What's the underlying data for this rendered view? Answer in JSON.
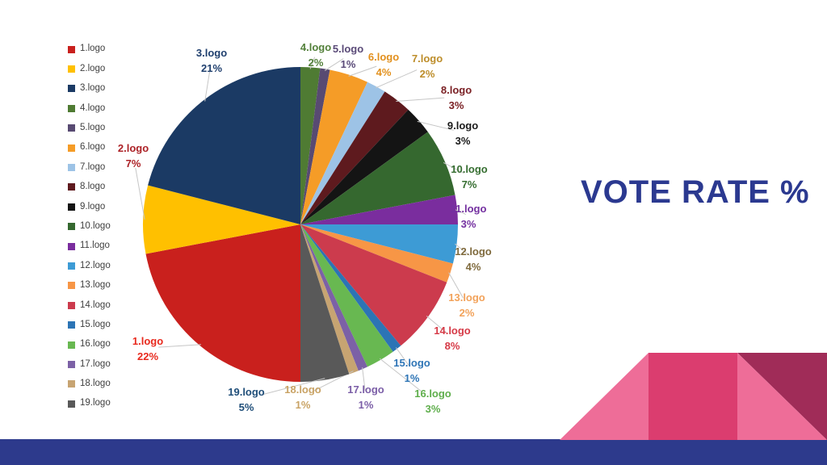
{
  "title": {
    "text": "VOTE RATE %",
    "color": "#2B3990"
  },
  "chart_data": {
    "type": "pie",
    "title": "VOTE RATE %",
    "unit": "percent",
    "start_angle_deg": 180,
    "direction": "clockwise",
    "legend_position": "left",
    "total": 100,
    "label_format": "{name} {value}%",
    "series": [
      {
        "label": "1.logo",
        "value": 22,
        "color": "#C9201D",
        "label_color": "#E8291D"
      },
      {
        "label": "2.logo",
        "value": 7,
        "color": "#FFC000",
        "label_color": "#AC2227"
      },
      {
        "label": "3.logo",
        "value": 21,
        "color": "#1B3A64",
        "label_color": "#1F3F6E"
      },
      {
        "label": "4.logo",
        "value": 2,
        "color": "#4F7B33",
        "label_color": "#53803A"
      },
      {
        "label": "5.logo",
        "value": 1,
        "color": "#584A72",
        "label_color": "#5A4A78"
      },
      {
        "label": "6.logo",
        "value": 4,
        "color": "#F59C27",
        "label_color": "#E2901D"
      },
      {
        "label": "7.logo",
        "value": 2,
        "color": "#9DC3E6",
        "label_color": "#BD8D2A"
      },
      {
        "label": "8.logo",
        "value": 3,
        "color": "#5E1A1E",
        "label_color": "#7B2125"
      },
      {
        "label": "9.logo",
        "value": 3,
        "color": "#141414",
        "label_color": "#1A1A1A"
      },
      {
        "label": "10.logo",
        "value": 7,
        "color": "#35682F",
        "label_color": "#366E31"
      },
      {
        "label": "11.logo",
        "value": 3,
        "color": "#7A2D9E",
        "label_color": "#7430A0"
      },
      {
        "label": "12.logo",
        "value": 4,
        "color": "#3D9BD5",
        "label_color": "#7F6A3D"
      },
      {
        "label": "13.logo",
        "value": 2,
        "color": "#F79646",
        "label_color": "#F2A25A"
      },
      {
        "label": "14.logo",
        "value": 8,
        "color": "#CC3B4D",
        "label_color": "#D63A47"
      },
      {
        "label": "15.logo",
        "value": 1,
        "color": "#2C74B5",
        "label_color": "#2E75B6"
      },
      {
        "label": "16.logo",
        "value": 3,
        "color": "#68B851",
        "label_color": "#5FAE4C"
      },
      {
        "label": "17.logo",
        "value": 1,
        "color": "#7C61A6",
        "label_color": "#7B5EA7"
      },
      {
        "label": "18.logo",
        "value": 1,
        "color": "#C7A472",
        "label_color": "#C9A365"
      },
      {
        "label": "19.logo",
        "value": 5,
        "color": "#595959",
        "label_color": "#1F4E79"
      }
    ]
  },
  "legend": {
    "text_color": "#404040"
  },
  "leader_line_color": "#C6C6C6",
  "decor": {
    "light_pink": "#EE6D98",
    "deep_pink": "#DB3D6F",
    "maroon": "#A02C58",
    "footer_bar": "#2D3A8C"
  }
}
